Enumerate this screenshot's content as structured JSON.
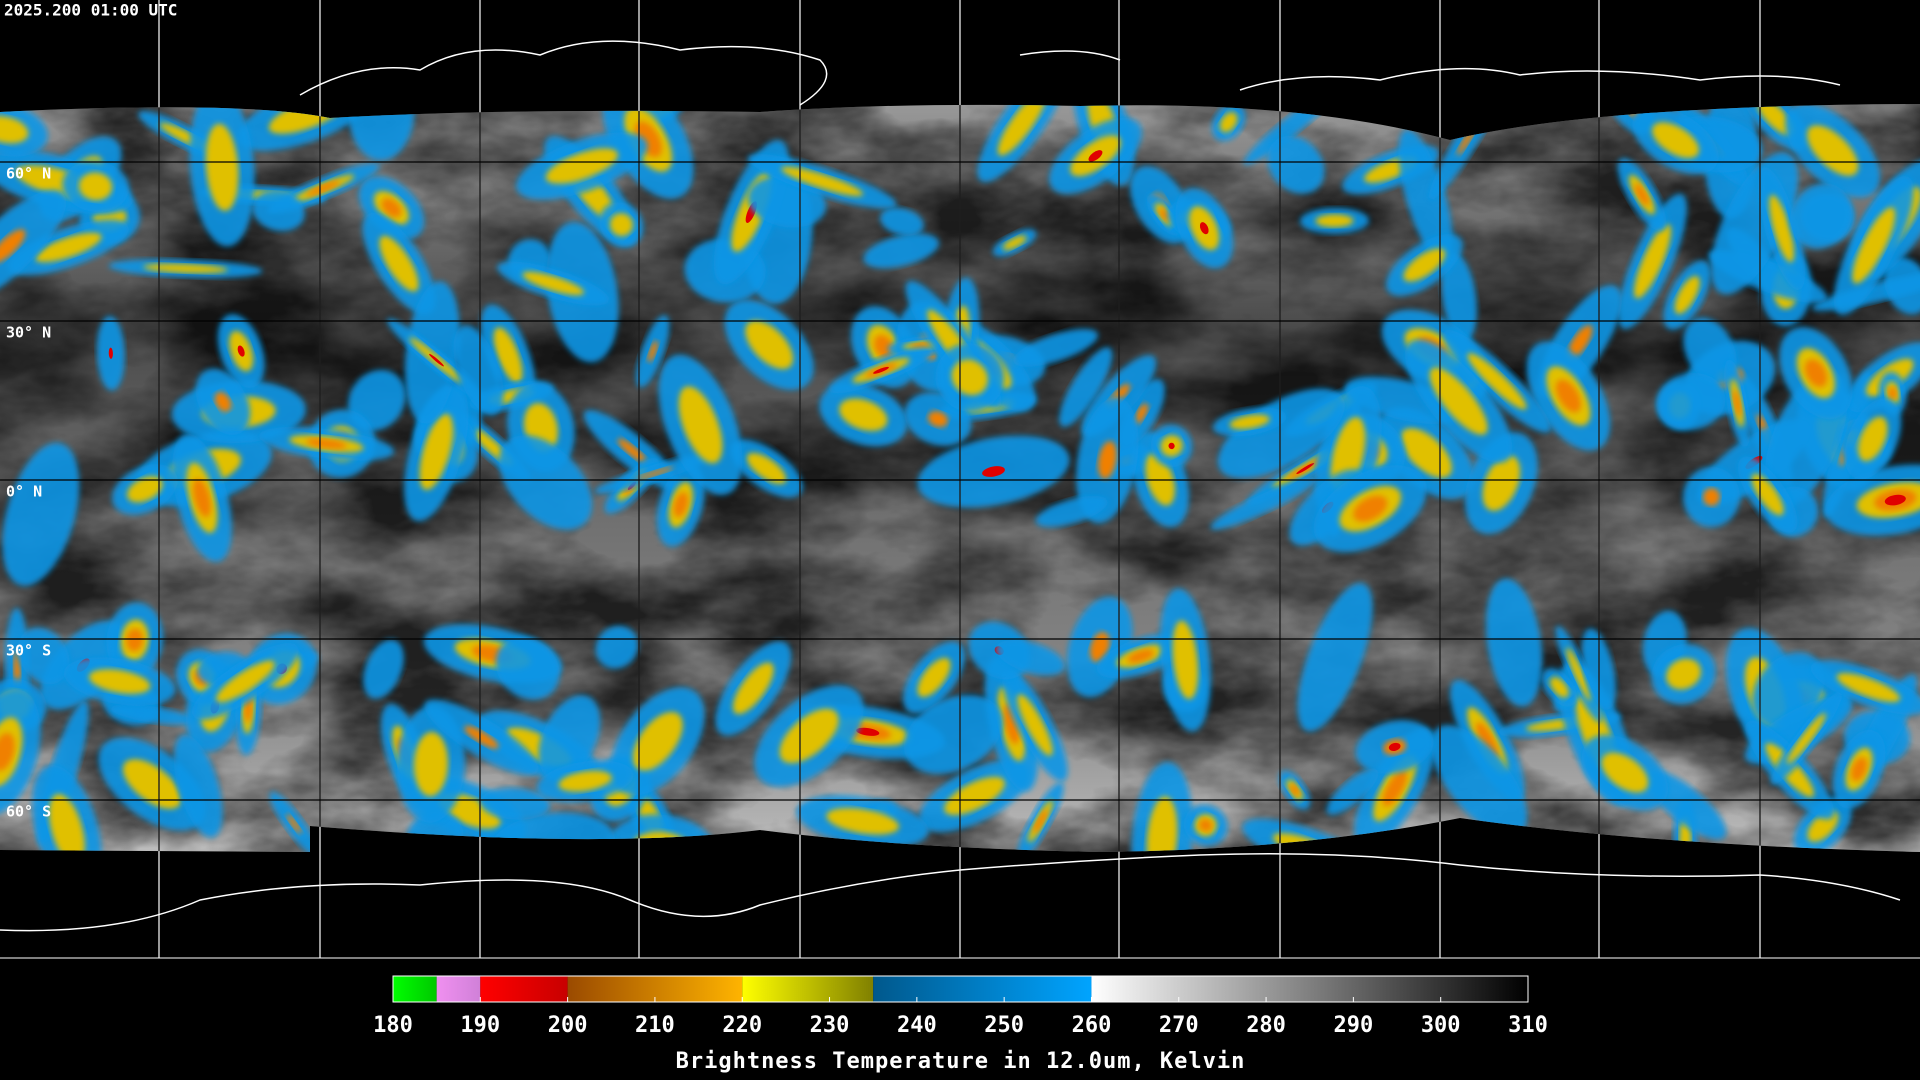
{
  "header": {
    "timestamp": "2025.200 01:00 UTC"
  },
  "map": {
    "lat_labels": [
      "60° N",
      "30° N",
      "0° N",
      "30° S",
      "60° S"
    ]
  },
  "colorbar": {
    "title": "Brightness Temperature in 12.0um, Kelvin",
    "lim": [
      180,
      310
    ],
    "ticks": [
      180,
      190,
      200,
      210,
      220,
      230,
      240,
      250,
      260,
      270,
      280,
      290,
      300,
      310
    ],
    "segments": [
      {
        "from": 180,
        "to": 185,
        "colors": [
          "#00ff00",
          "#00c800"
        ]
      },
      {
        "from": 185,
        "to": 190,
        "colors": [
          "#f090f0",
          "#d080d8"
        ]
      },
      {
        "from": 190,
        "to": 200,
        "colors": [
          "#ff0000",
          "#c80000"
        ]
      },
      {
        "from": 200,
        "to": 220,
        "colors": [
          "#9a4a00",
          "#ffb400"
        ]
      },
      {
        "from": 220,
        "to": 235,
        "colors": [
          "#ffff00",
          "#808000"
        ]
      },
      {
        "from": 235,
        "to": 260,
        "colors": [
          "#00588c",
          "#00a4ff"
        ]
      },
      {
        "from": 260,
        "to": 310,
        "colors": [
          "#ffffff",
          "#000000"
        ]
      }
    ]
  }
}
